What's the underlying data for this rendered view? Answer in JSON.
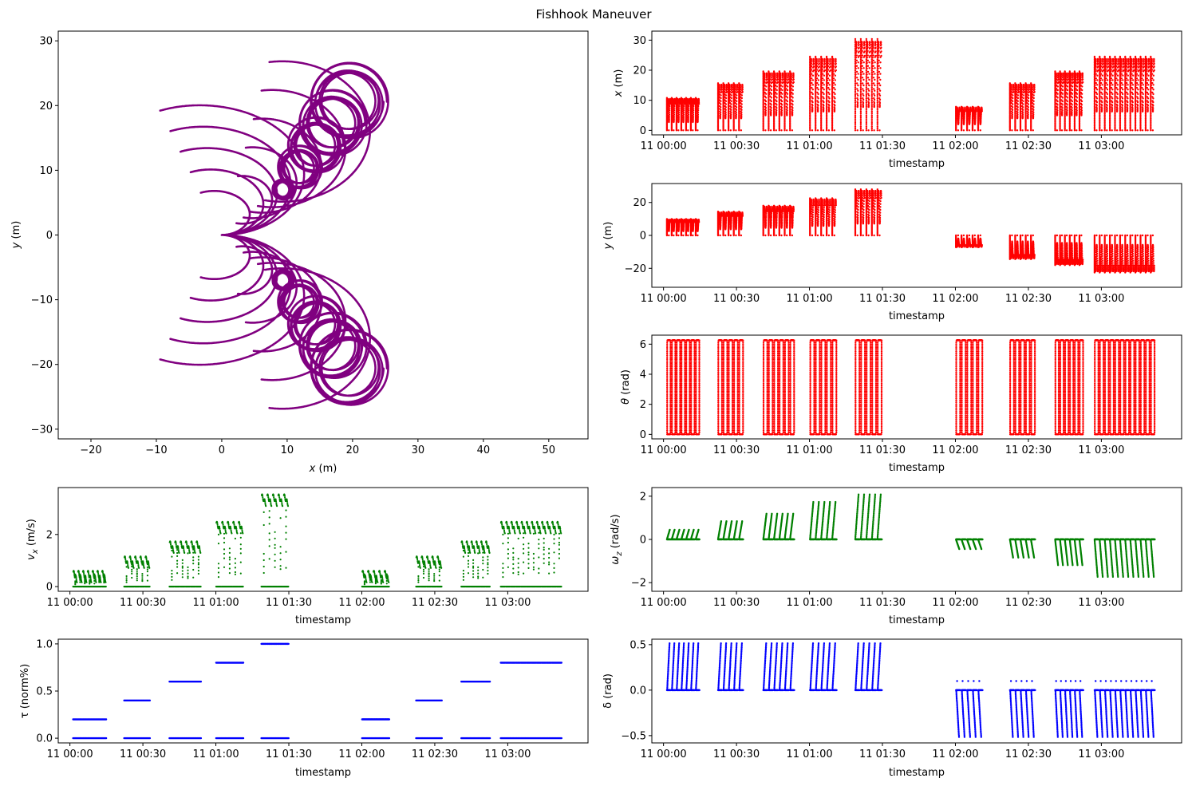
{
  "figure": {
    "title": "Fishhook Maneuver"
  },
  "chart_data": [
    {
      "id": "trajectory",
      "type": "scatter",
      "xlabel": "x (m)",
      "ylabel": "y (m)",
      "xlim": [
        -25,
        56
      ],
      "ylim": [
        -31.5,
        31.5
      ],
      "xticks": [
        -20,
        -10,
        0,
        10,
        20,
        30,
        40,
        50
      ],
      "yticks": [
        -30,
        -20,
        -10,
        0,
        10,
        20,
        30
      ],
      "color": "#800080",
      "spirals": [
        {
          "R": 3.5,
          "spin_radius": 1.6
        },
        {
          "R": 5.2,
          "spin_radius": 3.4
        },
        {
          "R": 6.9,
          "spin_radius": 4.4
        },
        {
          "R": 8.6,
          "spin_radius": 5.2
        },
        {
          "R": 10.3,
          "spin_radius": 6.0
        }
      ]
    },
    {
      "id": "x-series",
      "type": "scatter",
      "xlabel": "timestamp",
      "ylabel": "x (m)",
      "ylim": [
        -1.5,
        33
      ],
      "yticks": [
        0,
        10,
        20,
        30
      ],
      "color": "#ff0000"
    },
    {
      "id": "y-series",
      "type": "scatter",
      "xlabel": "timestamp",
      "ylabel": "y (m)",
      "ylim": [
        -31.5,
        31.5
      ],
      "yticks": [
        -20,
        0,
        20
      ],
      "color": "#ff0000"
    },
    {
      "id": "theta-series",
      "type": "scatter",
      "xlabel": "timestamp",
      "ylabel": "θ (rad)",
      "ylim": [
        -0.3,
        6.6
      ],
      "yticks": [
        0,
        2,
        4,
        6
      ],
      "color": "#ff0000"
    },
    {
      "id": "vx-series",
      "type": "scatter",
      "xlabel": "timestamp",
      "ylabel": "vx (m/s)",
      "ylim": [
        -0.18,
        3.8
      ],
      "yticks": [
        0,
        2
      ],
      "color": "#008000",
      "block_levels": [
        0.57,
        0.57,
        1.12,
        1.7,
        2.45,
        3.5
      ]
    },
    {
      "id": "omega-series",
      "type": "scatter",
      "xlabel": "timestamp",
      "ylabel": "ωz (rad/s)",
      "ylim": [
        -2.4,
        2.4
      ],
      "yticks": [
        -2,
        0,
        2
      ],
      "color": "#008000",
      "block_levels": [
        0.45,
        0.45,
        0.85,
        1.2,
        1.75,
        2.1
      ]
    },
    {
      "id": "tau-series",
      "type": "scatter",
      "xlabel": "timestamp",
      "ylabel": "τ (norm%)",
      "ylim": [
        -0.05,
        1.05
      ],
      "yticks": [
        0.0,
        0.5,
        1.0
      ],
      "ytick_labels": [
        "0.0",
        "0.5",
        "1.0"
      ],
      "color": "#0000ff",
      "block_levels": [
        0.2,
        0.2,
        0.4,
        0.6,
        0.8,
        1.0
      ]
    },
    {
      "id": "delta-series",
      "type": "scatter",
      "xlabel": "timestamp",
      "ylabel": "δ (rad)",
      "ylim": [
        -0.58,
        0.56
      ],
      "yticks": [
        -0.5,
        0.0,
        0.5
      ],
      "ytick_labels": [
        "−0.5",
        "0.0",
        "0.5"
      ],
      "color": "#0000ff"
    }
  ],
  "time_axis": {
    "xlim_hours": [
      -0.08,
      3.55
    ],
    "ticks": [
      {
        "value": 0.0,
        "label": "11 00:00"
      },
      {
        "value": 0.5,
        "label": "11 00:30"
      },
      {
        "value": 1.0,
        "label": "11 01:00"
      },
      {
        "value": 1.5,
        "label": "11 01:30"
      },
      {
        "value": 2.0,
        "label": "11 02:00"
      },
      {
        "value": 2.5,
        "label": "11 02:30"
      },
      {
        "value": 3.0,
        "label": "11 03:00"
      }
    ],
    "blocks_hours": [
      [
        0.02,
        0.25
      ],
      [
        0.37,
        0.55
      ],
      [
        0.68,
        0.9
      ],
      [
        1.0,
        1.19
      ],
      [
        1.31,
        1.5
      ],
      [
        2.0,
        2.19
      ],
      [
        2.37,
        2.55
      ],
      [
        2.68,
        2.88
      ],
      [
        2.95,
        3.37
      ]
    ],
    "block_magnitude_index": [
      0,
      2,
      3,
      4,
      5,
      1,
      2,
      3,
      4
    ],
    "block_sign": [
      1,
      1,
      1,
      1,
      1,
      -1,
      -1,
      -1,
      -1
    ]
  },
  "labels": {
    "traj_x": "x",
    "traj_x_unit": " (m)",
    "traj_y": "y",
    "traj_y_unit": " (m)",
    "x_y": "x",
    "x_y_unit": " (m)",
    "y_y": "y",
    "y_y_unit": " (m)",
    "theta_y": "θ",
    "theta_y_unit": " (rad)",
    "vx_y": "v",
    "vx_sub": "x",
    "vx_y_unit": " (m/s)",
    "omega_y": "ω",
    "omega_sub": "z",
    "omega_y_unit": " (rad/s)",
    "tau_y": "τ (norm%)",
    "delta_y": "δ (rad)",
    "timestamp": "timestamp"
  }
}
